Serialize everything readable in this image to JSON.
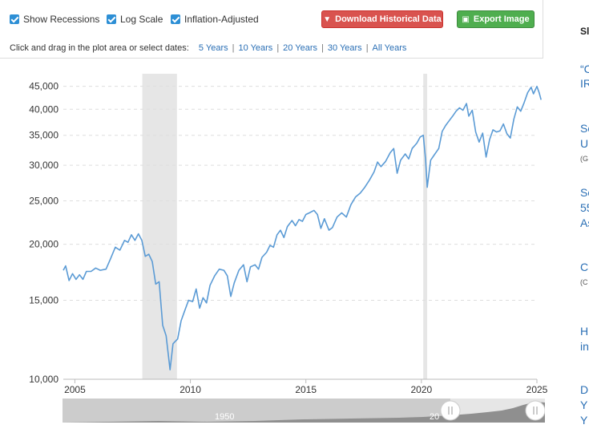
{
  "controls": {
    "show_recessions": "Show Recessions",
    "log_scale": "Log Scale",
    "inflation_adjusted": "Inflation-Adjusted",
    "download_button": "Download Historical Data",
    "export_button": "Export Image",
    "date_prompt": "Click and drag in the plot area or select dates:",
    "ranges": [
      "5 Years",
      "10 Years",
      "20 Years",
      "30 Years",
      "All Years"
    ]
  },
  "navigator": {
    "labels": [
      "1950",
      "20"
    ]
  },
  "sidebar": {
    "items": [
      "Sl",
      "“C",
      "IR",
      "Se",
      "U",
      "(G",
      "Se",
      "55",
      "As",
      "C",
      "(C",
      "H",
      "in",
      "D",
      "Y",
      "Y"
    ]
  },
  "colors": {
    "line": "#5b9bd5",
    "recession": "#e6e6e6",
    "download_button": "#d9534f",
    "export_button": "#4fae4f",
    "link": "#2a6fb5"
  },
  "chart_data": {
    "type": "line",
    "log_scale": true,
    "grid": "horizontal dashed",
    "xlim": [
      2004.5,
      2025
    ],
    "ylim": [
      10000,
      48000
    ],
    "x_ticks": [
      2005,
      2010,
      2015,
      2020,
      2025
    ],
    "x_tick_labels": [
      "2005",
      "2010",
      "2015",
      "2020",
      "2025"
    ],
    "y_ticks": [
      10000,
      15000,
      20000,
      25000,
      30000,
      35000,
      40000,
      45000
    ],
    "y_tick_labels": [
      "10,000",
      "15,000",
      "20,000",
      "25,000",
      "30,000",
      "35,000",
      "40,000",
      "45,000"
    ],
    "recessions": [
      [
        2007.92,
        2009.42
      ],
      [
        2020.08,
        2020.25
      ]
    ],
    "series": [
      {
        "points": [
          [
            2004.5,
            17500
          ],
          [
            2004.6,
            17900
          ],
          [
            2004.75,
            16600
          ],
          [
            2004.9,
            17200
          ],
          [
            2005.05,
            16700
          ],
          [
            2005.2,
            17100
          ],
          [
            2005.35,
            16700
          ],
          [
            2005.5,
            17400
          ],
          [
            2005.7,
            17400
          ],
          [
            2005.9,
            17700
          ],
          [
            2006.1,
            17500
          ],
          [
            2006.35,
            17600
          ],
          [
            2006.55,
            18600
          ],
          [
            2006.75,
            19700
          ],
          [
            2006.95,
            19400
          ],
          [
            2007.15,
            20400
          ],
          [
            2007.3,
            20200
          ],
          [
            2007.45,
            21000
          ],
          [
            2007.6,
            20400
          ],
          [
            2007.75,
            21100
          ],
          [
            2007.9,
            20400
          ],
          [
            2008.05,
            18800
          ],
          [
            2008.2,
            19000
          ],
          [
            2008.35,
            18300
          ],
          [
            2008.5,
            16300
          ],
          [
            2008.65,
            16500
          ],
          [
            2008.8,
            13200
          ],
          [
            2008.95,
            12500
          ],
          [
            2009.12,
            10500
          ],
          [
            2009.25,
            12000
          ],
          [
            2009.45,
            12300
          ],
          [
            2009.6,
            13500
          ],
          [
            2009.75,
            14200
          ],
          [
            2009.92,
            15000
          ],
          [
            2010.1,
            14900
          ],
          [
            2010.25,
            15900
          ],
          [
            2010.4,
            14400
          ],
          [
            2010.55,
            15200
          ],
          [
            2010.7,
            14800
          ],
          [
            2010.85,
            16200
          ],
          [
            2011.05,
            17000
          ],
          [
            2011.25,
            17600
          ],
          [
            2011.45,
            17500
          ],
          [
            2011.6,
            17000
          ],
          [
            2011.75,
            15300
          ],
          [
            2011.9,
            16400
          ],
          [
            2012.1,
            17500
          ],
          [
            2012.3,
            18000
          ],
          [
            2012.45,
            16500
          ],
          [
            2012.6,
            17800
          ],
          [
            2012.8,
            18000
          ],
          [
            2012.95,
            17600
          ],
          [
            2013.1,
            18700
          ],
          [
            2013.3,
            19200
          ],
          [
            2013.45,
            19900
          ],
          [
            2013.6,
            19700
          ],
          [
            2013.75,
            21000
          ],
          [
            2013.9,
            21500
          ],
          [
            2014.05,
            20700
          ],
          [
            2014.2,
            21900
          ],
          [
            2014.4,
            22600
          ],
          [
            2014.55,
            22000
          ],
          [
            2014.7,
            22700
          ],
          [
            2014.85,
            22500
          ],
          [
            2015.0,
            23300
          ],
          [
            2015.15,
            23500
          ],
          [
            2015.35,
            23800
          ],
          [
            2015.5,
            23300
          ],
          [
            2015.65,
            21700
          ],
          [
            2015.8,
            22800
          ],
          [
            2016.0,
            21500
          ],
          [
            2016.15,
            21800
          ],
          [
            2016.35,
            23000
          ],
          [
            2016.55,
            23500
          ],
          [
            2016.75,
            23000
          ],
          [
            2016.95,
            24500
          ],
          [
            2017.15,
            25500
          ],
          [
            2017.35,
            26000
          ],
          [
            2017.55,
            26800
          ],
          [
            2017.75,
            27800
          ],
          [
            2017.95,
            29000
          ],
          [
            2018.1,
            30500
          ],
          [
            2018.25,
            29800
          ],
          [
            2018.45,
            30600
          ],
          [
            2018.65,
            32000
          ],
          [
            2018.8,
            32700
          ],
          [
            2018.95,
            28800
          ],
          [
            2019.1,
            30800
          ],
          [
            2019.3,
            31800
          ],
          [
            2019.45,
            31000
          ],
          [
            2019.6,
            32700
          ],
          [
            2019.8,
            33600
          ],
          [
            2019.95,
            34700
          ],
          [
            2020.08,
            35000
          ],
          [
            2020.18,
            31000
          ],
          [
            2020.25,
            26800
          ],
          [
            2020.4,
            30800
          ],
          [
            2020.55,
            31600
          ],
          [
            2020.75,
            32700
          ],
          [
            2020.9,
            35700
          ],
          [
            2021.05,
            36800
          ],
          [
            2021.2,
            37700
          ],
          [
            2021.35,
            38600
          ],
          [
            2021.5,
            39600
          ],
          [
            2021.65,
            40300
          ],
          [
            2021.8,
            39800
          ],
          [
            2021.95,
            41200
          ],
          [
            2022.05,
            38600
          ],
          [
            2022.2,
            39800
          ],
          [
            2022.35,
            35600
          ],
          [
            2022.5,
            33800
          ],
          [
            2022.65,
            35400
          ],
          [
            2022.8,
            31300
          ],
          [
            2022.95,
            34200
          ],
          [
            2023.1,
            36000
          ],
          [
            2023.25,
            35600
          ],
          [
            2023.4,
            35800
          ],
          [
            2023.55,
            37100
          ],
          [
            2023.7,
            35300
          ],
          [
            2023.85,
            34500
          ],
          [
            2024.0,
            38000
          ],
          [
            2024.15,
            40500
          ],
          [
            2024.3,
            39600
          ],
          [
            2024.45,
            41400
          ],
          [
            2024.6,
            43600
          ],
          [
            2024.75,
            44800
          ],
          [
            2024.85,
            43300
          ],
          [
            2025.0,
            45000
          ],
          [
            2025.1,
            43500
          ],
          [
            2025.18,
            42000
          ]
        ]
      }
    ]
  }
}
